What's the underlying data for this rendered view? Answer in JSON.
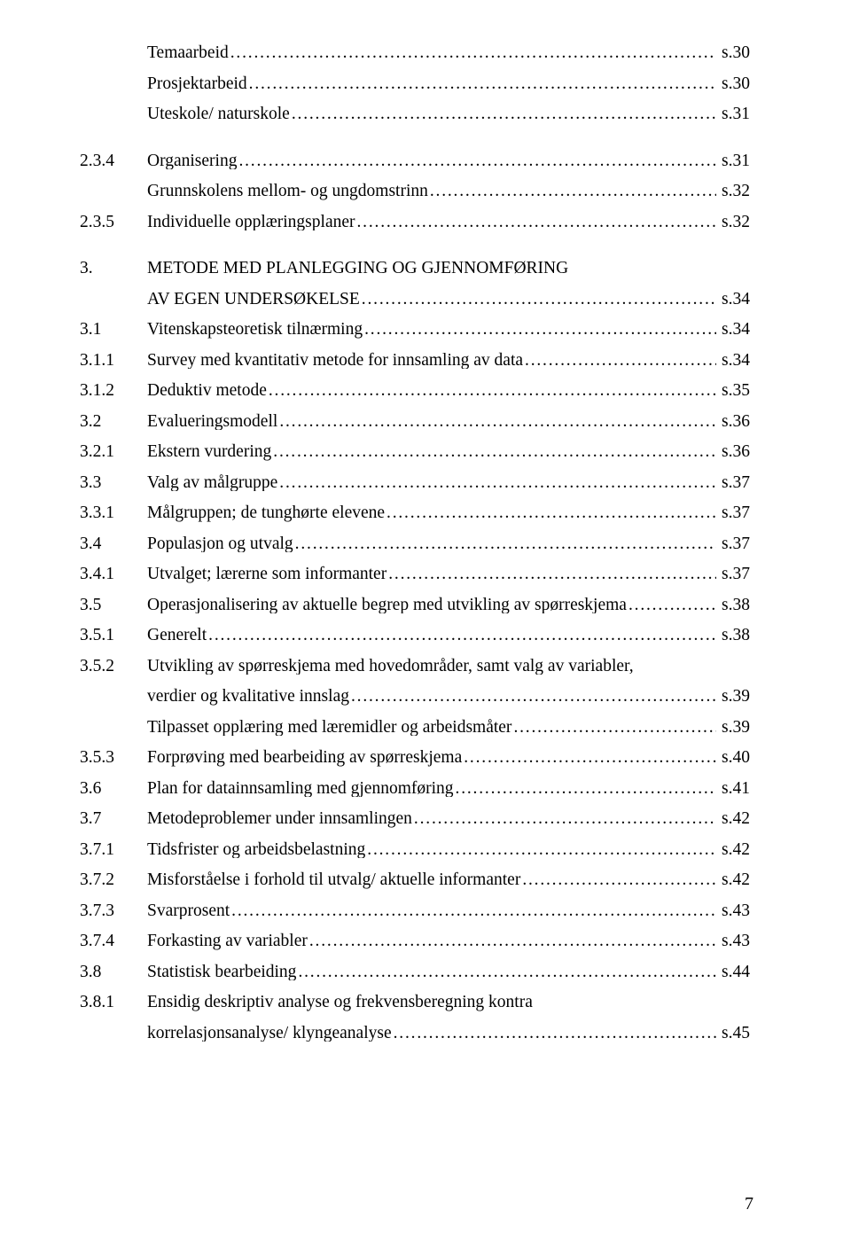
{
  "typography": {
    "font_family": "Times New Roman",
    "base_fontsize_pt": 14,
    "text_color": "#000000",
    "background_color": "#ffffff",
    "leader_char": "."
  },
  "page_number": "7",
  "entries": [
    {
      "indent": true,
      "num": "",
      "title": "Temaarbeid",
      "page": "s.30"
    },
    {
      "indent": true,
      "num": "",
      "title": "Prosjektarbeid",
      "page": "s.30"
    },
    {
      "indent": true,
      "num": "",
      "title": "Uteskole/ naturskole",
      "page": "s.31"
    },
    {
      "spacer": true
    },
    {
      "indent": false,
      "num": "2.3.4",
      "title": "Organisering",
      "page": "s.31"
    },
    {
      "indent": true,
      "num": "",
      "title": "Grunnskolens mellom- og ungdomstrinn",
      "page": "s.32"
    },
    {
      "indent": false,
      "num": "2.3.5",
      "title": "Individuelle opplæringsplaner",
      "page": "s.32"
    },
    {
      "spacer": true
    },
    {
      "indent": false,
      "num": "3.",
      "title": "METODE MED PLANLEGGING OG GJENNOMFØRING",
      "page": "",
      "no_leader": true
    },
    {
      "indent": true,
      "num": "",
      "title": "AV EGEN UNDERSØKELSE",
      "page": "s.34"
    },
    {
      "indent": false,
      "num": "3.1",
      "title": "Vitenskapsteoretisk tilnærming",
      "page": "s.34"
    },
    {
      "indent": false,
      "num": "3.1.1",
      "title": "Survey med kvantitativ metode for innsamling av data",
      "page": "s.34"
    },
    {
      "indent": false,
      "num": "3.1.2",
      "title": "Deduktiv metode",
      "page": "s.35"
    },
    {
      "indent": false,
      "num": "3.2",
      "title": "Evalueringsmodell",
      "page": "s.36"
    },
    {
      "indent": false,
      "num": "3.2.1",
      "title": "Ekstern vurdering",
      "page": "s.36"
    },
    {
      "indent": false,
      "num": "3.3",
      "title": "Valg av målgruppe",
      "page": "s.37"
    },
    {
      "indent": false,
      "num": "3.3.1",
      "title": "Målgruppen; de tunghørte elevene",
      "page": "s.37"
    },
    {
      "indent": false,
      "num": "3.4",
      "title": "Populasjon og utvalg",
      "page": "s.37"
    },
    {
      "indent": false,
      "num": "3.4.1",
      "title": "Utvalget; lærerne som informanter",
      "page": "s.37"
    },
    {
      "indent": false,
      "num": "3.5",
      "title": "Operasjonalisering av aktuelle begrep med utvikling av spørreskjema",
      "page": "s.38"
    },
    {
      "indent": false,
      "num": "3.5.1",
      "title": "Generelt",
      "page": "s.38"
    },
    {
      "indent": false,
      "num": "3.5.2",
      "title": "Utvikling av spørreskjema med hovedområder, samt valg av variabler,",
      "page": "",
      "no_leader": true
    },
    {
      "indent": true,
      "num": "",
      "title": "verdier og kvalitative innslag",
      "page": "s.39"
    },
    {
      "indent": true,
      "num": "",
      "title": "Tilpasset opplæring med læremidler og arbeidsmåter",
      "page": "s.39"
    },
    {
      "indent": false,
      "num": "3.5.3",
      "title": "Forprøving med bearbeiding av spørreskjema",
      "page": "s.40"
    },
    {
      "indent": false,
      "num": "3.6",
      "title": "Plan for datainnsamling med gjennomføring",
      "page": "s.41"
    },
    {
      "indent": false,
      "num": "3.7",
      "title": "Metodeproblemer under innsamlingen",
      "page": "s.42"
    },
    {
      "indent": false,
      "num": "3.7.1",
      "title": "Tidsfrister og arbeidsbelastning",
      "page": "s.42"
    },
    {
      "indent": false,
      "num": "3.7.2",
      "title": "Misforståelse i forhold til utvalg/ aktuelle informanter",
      "page": "s.42"
    },
    {
      "indent": false,
      "num": "3.7.3",
      "title": "Svarprosent",
      "page": "s.43"
    },
    {
      "indent": false,
      "num": "3.7.4",
      "title": "Forkasting av variabler",
      "page": "s.43"
    },
    {
      "indent": false,
      "num": "3.8",
      "title": "Statistisk bearbeiding",
      "page": "s.44"
    },
    {
      "indent": false,
      "num": "3.8.1",
      "title": "Ensidig deskriptiv analyse og frekvensberegning kontra",
      "page": "",
      "no_leader": true
    },
    {
      "indent": true,
      "num": "",
      "title": "korrelasjonsanalyse/ klyngeanalyse",
      "page": "s.45"
    }
  ]
}
